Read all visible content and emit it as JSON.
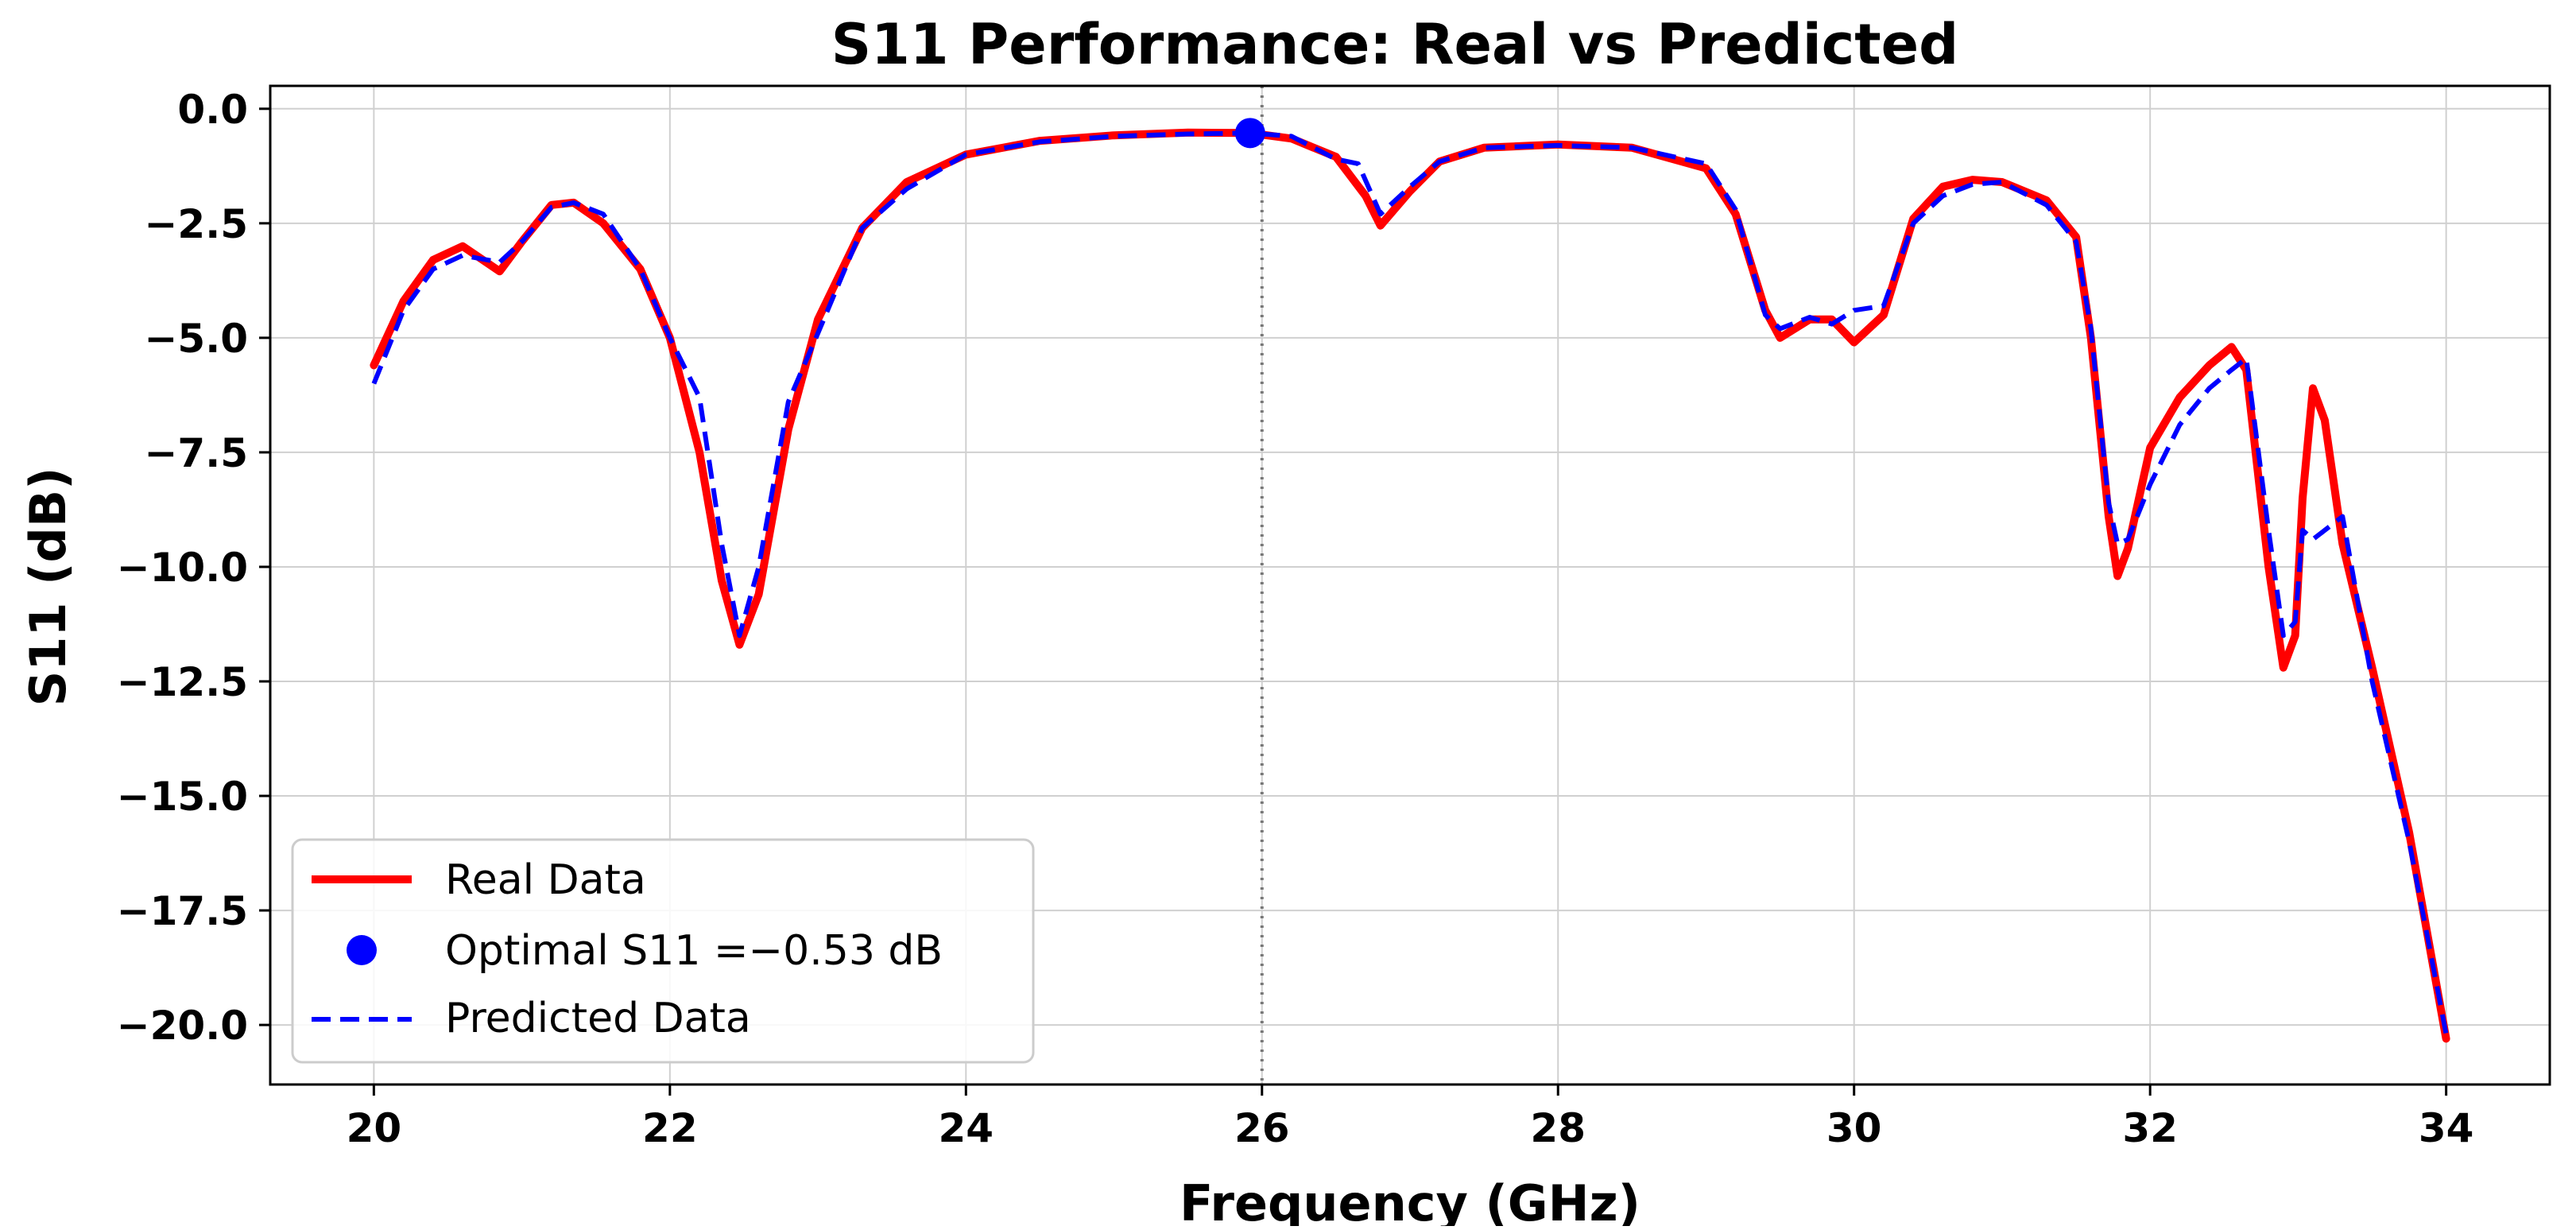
{
  "chart_data": {
    "type": "line",
    "title": "S11 Performance: Real vs Predicted",
    "xlabel": "Frequency (GHz)",
    "ylabel": "S11 (dB)",
    "xlim": [
      19.3,
      34.7
    ],
    "ylim": [
      -21.3,
      0.5
    ],
    "grid": true,
    "legend_position": "lower-left",
    "xticks": [
      20,
      22,
      24,
      26,
      28,
      30,
      32,
      34
    ],
    "xtick_labels": [
      "20",
      "22",
      "24",
      "26",
      "28",
      "30",
      "32",
      "34"
    ],
    "yticks": [
      0.0,
      -2.5,
      -5.0,
      -7.5,
      -10.0,
      -12.5,
      -15.0,
      -17.5,
      -20.0
    ],
    "ytick_labels": [
      "0.0",
      "−2.5",
      "−5.0",
      "−7.5",
      "−10.0",
      "−12.5",
      "−15.0",
      "−17.5",
      "−20.0"
    ],
    "vline_x": 26.0,
    "optimal_point": {
      "x": 25.92,
      "y": -0.53,
      "color": "#0000ff"
    },
    "series": [
      {
        "name": "Real Data",
        "color": "#ff0000",
        "style": "solid",
        "x": [
          20.0,
          20.2,
          20.4,
          20.6,
          20.85,
          21.0,
          21.2,
          21.35,
          21.55,
          21.8,
          22.0,
          22.2,
          22.35,
          22.47,
          22.6,
          22.8,
          23.0,
          23.3,
          23.6,
          24.0,
          24.5,
          25.0,
          25.5,
          25.92,
          26.2,
          26.5,
          26.7,
          26.8,
          27.0,
          27.2,
          27.5,
          28.0,
          28.5,
          29.0,
          29.2,
          29.4,
          29.5,
          29.7,
          29.85,
          30.0,
          30.2,
          30.4,
          30.6,
          30.8,
          31.0,
          31.3,
          31.5,
          31.6,
          31.72,
          31.78,
          31.85,
          32.0,
          32.2,
          32.4,
          32.55,
          32.65,
          32.8,
          32.9,
          32.98,
          33.03,
          33.1,
          33.18,
          33.3,
          33.5,
          33.75,
          34.0
        ],
        "y": [
          -5.6,
          -4.2,
          -3.3,
          -3.0,
          -3.55,
          -2.9,
          -2.1,
          -2.05,
          -2.5,
          -3.5,
          -5.0,
          -7.5,
          -10.3,
          -11.7,
          -10.6,
          -7.0,
          -4.6,
          -2.6,
          -1.6,
          -1.0,
          -0.7,
          -0.58,
          -0.52,
          -0.53,
          -0.65,
          -1.05,
          -1.9,
          -2.55,
          -1.8,
          -1.15,
          -0.85,
          -0.78,
          -0.85,
          -1.3,
          -2.3,
          -4.4,
          -5.0,
          -4.6,
          -4.6,
          -5.1,
          -4.5,
          -2.4,
          -1.7,
          -1.55,
          -1.6,
          -2.0,
          -2.8,
          -5.0,
          -8.9,
          -10.2,
          -9.6,
          -7.4,
          -6.3,
          -5.6,
          -5.2,
          -5.7,
          -10.0,
          -12.2,
          -11.5,
          -8.5,
          -6.1,
          -6.8,
          -9.5,
          -12.2,
          -15.8,
          -20.3
        ]
      },
      {
        "name": "Predicted Data",
        "color": "#0000ff",
        "style": "dashed",
        "x": [
          20.0,
          20.2,
          20.4,
          20.6,
          20.85,
          21.0,
          21.2,
          21.35,
          21.55,
          21.8,
          22.0,
          22.2,
          22.35,
          22.47,
          22.6,
          22.8,
          23.0,
          23.3,
          23.6,
          24.0,
          24.5,
          25.0,
          25.5,
          25.92,
          26.2,
          26.5,
          26.65,
          26.8,
          27.0,
          27.2,
          27.5,
          28.0,
          28.5,
          29.0,
          29.2,
          29.4,
          29.5,
          29.7,
          29.85,
          30.0,
          30.2,
          30.4,
          30.6,
          30.8,
          31.0,
          31.3,
          31.5,
          31.6,
          31.72,
          31.78,
          31.85,
          32.0,
          32.2,
          32.4,
          32.55,
          32.65,
          32.8,
          32.9,
          32.98,
          33.03,
          33.1,
          33.18,
          33.3,
          33.5,
          33.75,
          34.0
        ],
        "y": [
          -6.0,
          -4.4,
          -3.5,
          -3.2,
          -3.35,
          -2.9,
          -2.15,
          -2.05,
          -2.3,
          -3.5,
          -5.0,
          -6.3,
          -9.5,
          -11.5,
          -10.0,
          -6.4,
          -4.9,
          -2.6,
          -1.75,
          -1.0,
          -0.72,
          -0.6,
          -0.55,
          -0.53,
          -0.6,
          -1.1,
          -1.2,
          -2.3,
          -1.7,
          -1.15,
          -0.85,
          -0.8,
          -0.85,
          -1.2,
          -2.2,
          -4.5,
          -4.8,
          -4.55,
          -4.7,
          -4.4,
          -4.3,
          -2.5,
          -1.9,
          -1.65,
          -1.6,
          -2.1,
          -2.9,
          -4.8,
          -8.6,
          -9.5,
          -9.4,
          -8.2,
          -6.9,
          -6.1,
          -5.7,
          -5.45,
          -9.2,
          -11.5,
          -11.2,
          -9.2,
          -9.4,
          -9.2,
          -8.9,
          -12.5,
          -16.0,
          -20.2
        ]
      }
    ],
    "legend": [
      {
        "label": "Real Data",
        "marker": "line",
        "color": "#ff0000"
      },
      {
        "label": "Optimal S11 =−0.53 dB",
        "marker": "dot",
        "color": "#0000ff"
      },
      {
        "label": "Predicted Data",
        "marker": "dashed",
        "color": "#0000ff"
      }
    ]
  }
}
